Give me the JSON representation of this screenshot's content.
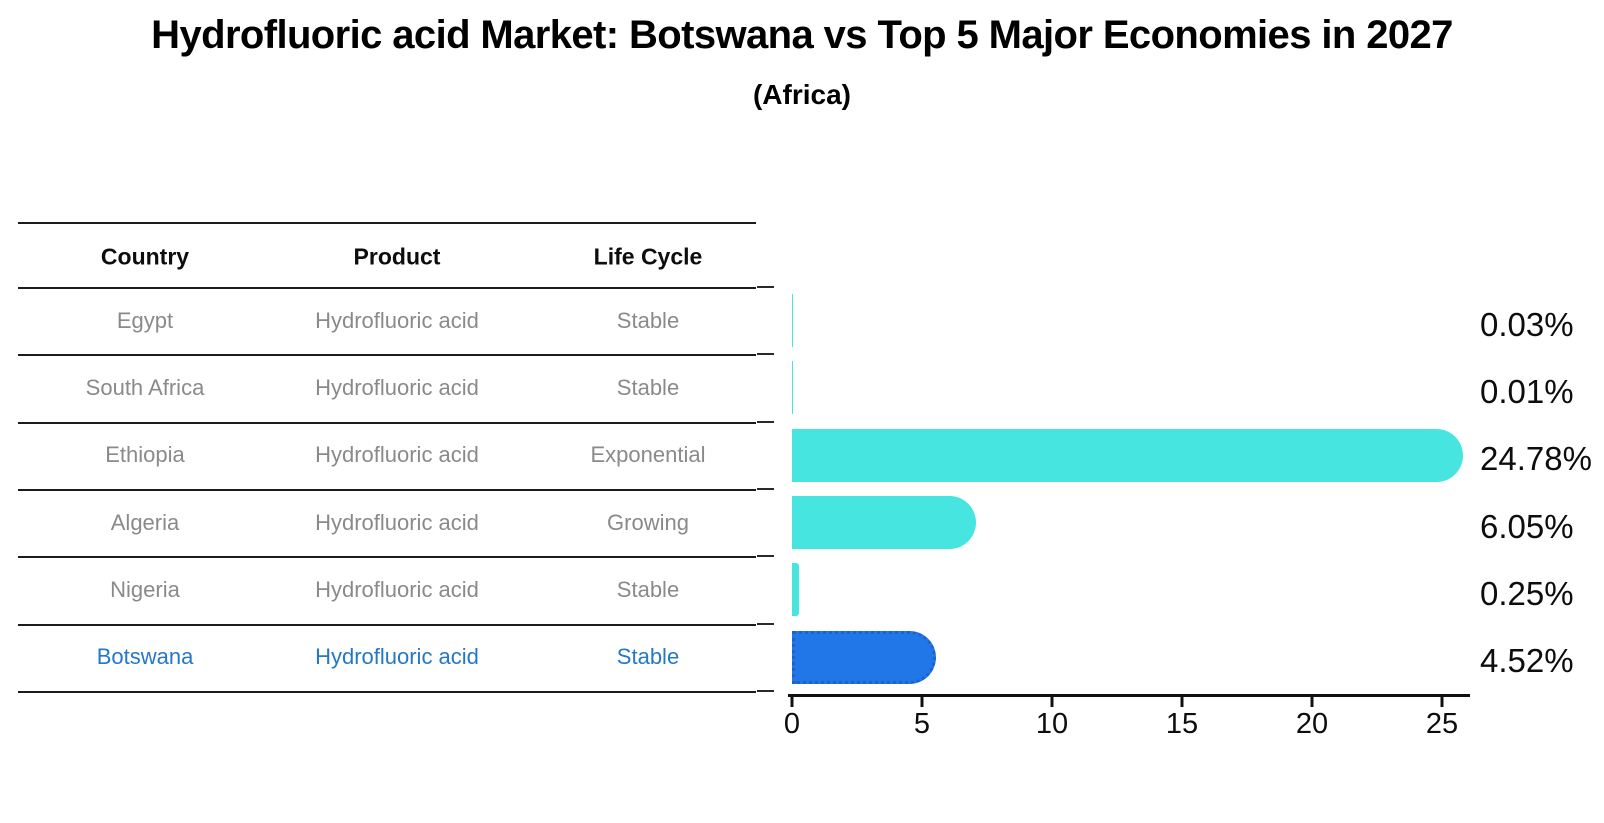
{
  "title": "Hydrofluoric acid Market: Botswana vs Top 5 Major Economies in 2027",
  "subtitle": "(Africa)",
  "table": {
    "headers": [
      "Country",
      "Product",
      "Life Cycle"
    ],
    "rows": [
      {
        "country": "Egypt",
        "product": "Hydrofluoric acid",
        "life_cycle": "Stable",
        "highlight": false
      },
      {
        "country": "South Africa",
        "product": "Hydrofluoric acid",
        "life_cycle": "Stable",
        "highlight": false
      },
      {
        "country": "Ethiopia",
        "product": "Hydrofluoric acid",
        "life_cycle": "Exponential",
        "highlight": false
      },
      {
        "country": "Algeria",
        "product": "Hydrofluoric acid",
        "life_cycle": "Growing",
        "highlight": false
      },
      {
        "country": "Nigeria",
        "product": "Hydrofluoric acid",
        "life_cycle": "Stable",
        "highlight": false
      },
      {
        "country": "Botswana",
        "product": "Hydrofluoric acid",
        "life_cycle": "Stable",
        "highlight": true
      }
    ]
  },
  "chart_data": {
    "type": "bar",
    "orientation": "horizontal",
    "title": "Hydrofluoric acid Market: Botswana vs Top 5 Major Economies in 2027",
    "subtitle": "(Africa)",
    "categories": [
      "Egypt",
      "South Africa",
      "Ethiopia",
      "Algeria",
      "Nigeria",
      "Botswana"
    ],
    "values": [
      0.03,
      0.01,
      24.78,
      6.05,
      0.25,
      4.52
    ],
    "value_labels": [
      "0.03%",
      "0.01%",
      "24.78%",
      "6.05%",
      "0.25%",
      "4.52%"
    ],
    "highlight_index": 5,
    "x_ticks": [
      0,
      5,
      10,
      15,
      20,
      25
    ],
    "x_tick_labels": [
      "0",
      "5",
      "10",
      "15",
      "20",
      "25"
    ],
    "xlim": [
      0,
      26.2
    ],
    "grid": false,
    "legend": false,
    "colors": {
      "bar": "#46e5e0",
      "highlight_fill": "#2277e8",
      "highlight_border": "#1a63cf",
      "axis": "#111111",
      "table_text": "#8a8a8a",
      "highlight_text": "#2478c8"
    }
  }
}
